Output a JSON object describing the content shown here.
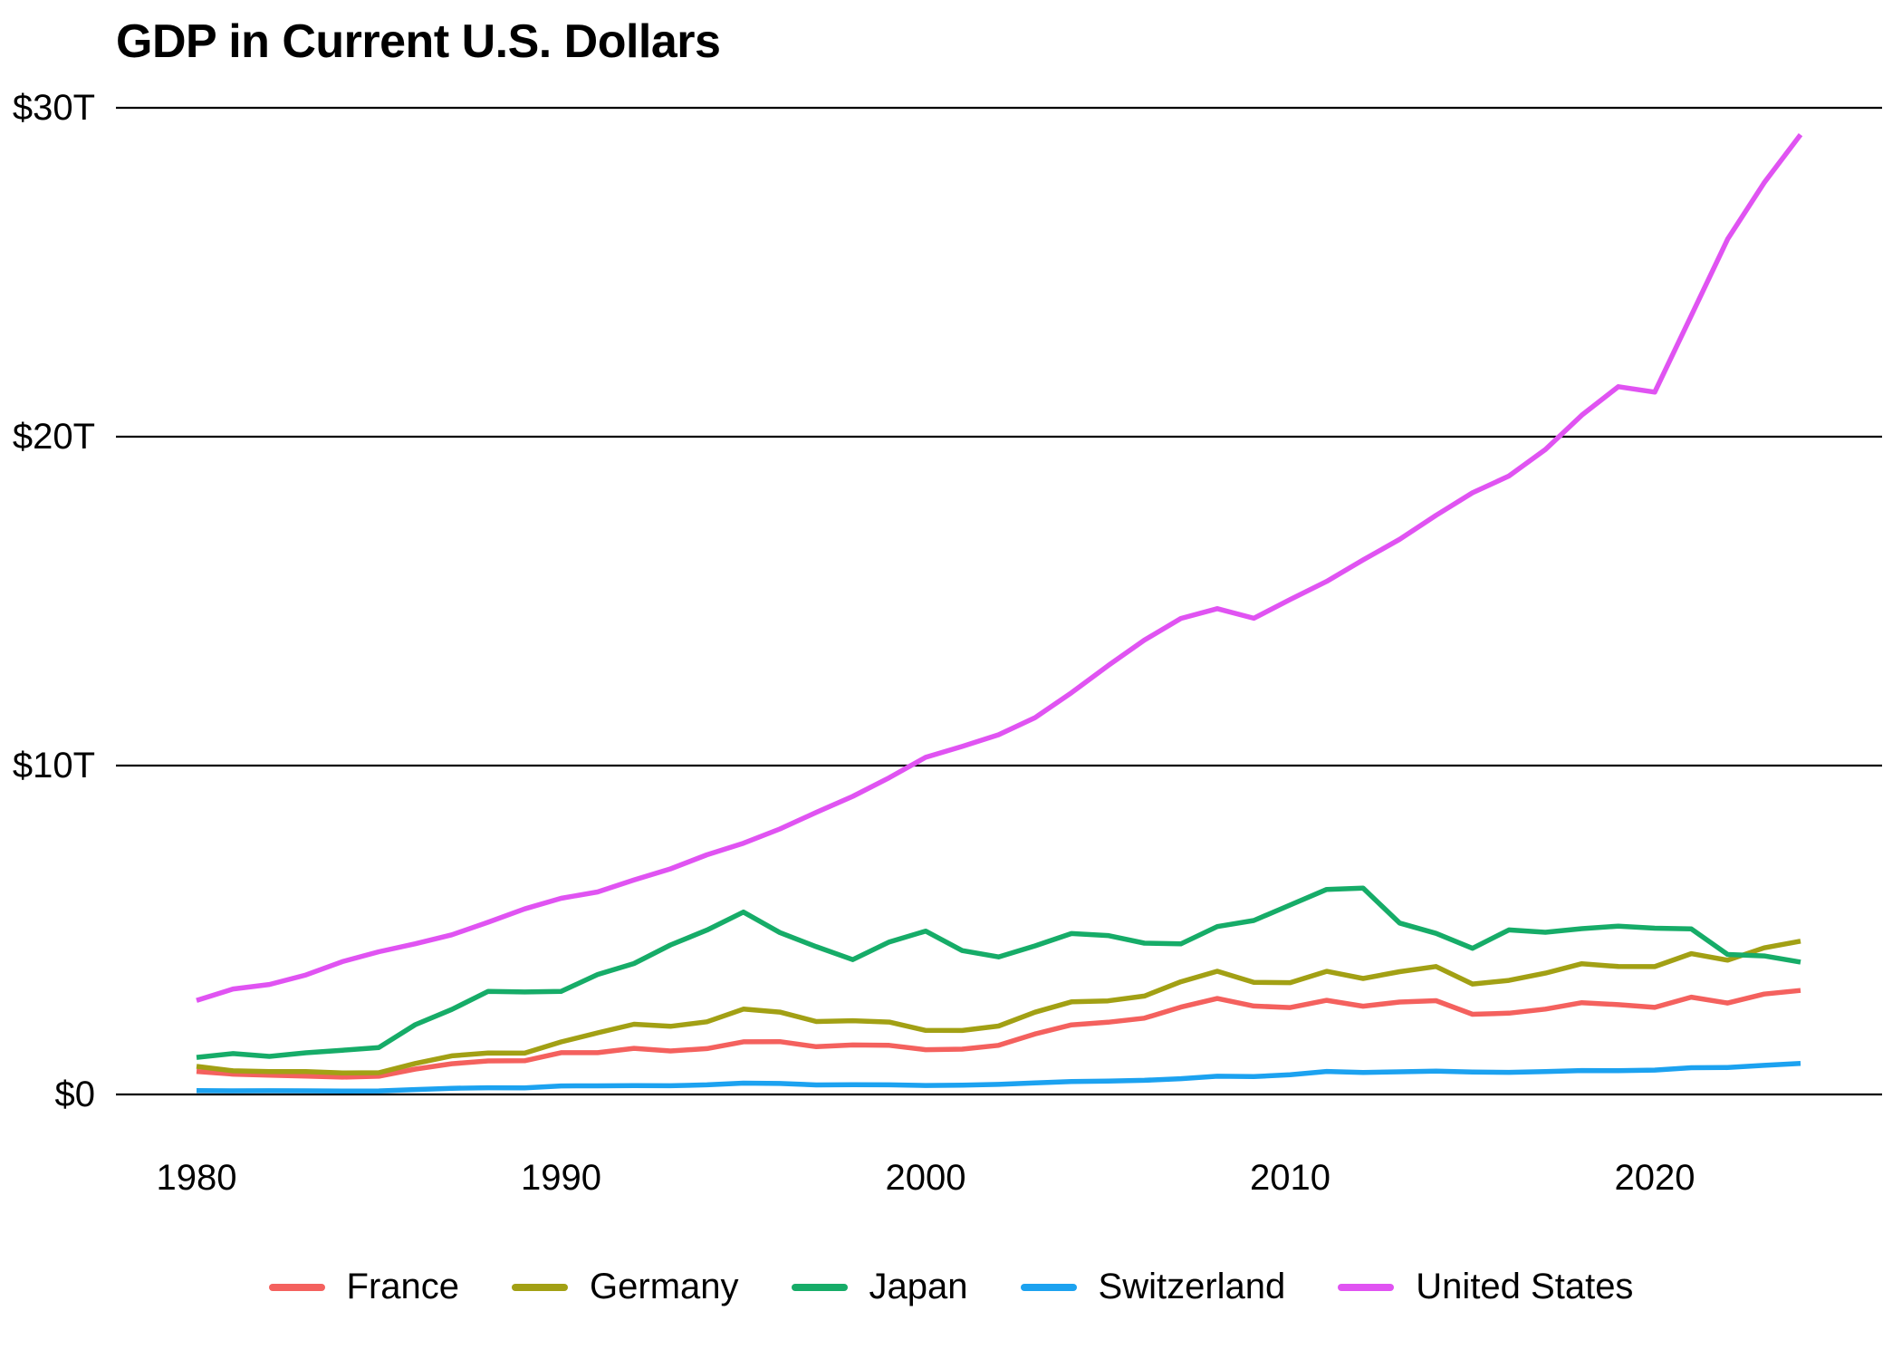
{
  "title": "GDP in Current U.S. Dollars",
  "chart_data": {
    "type": "line",
    "title": "GDP in Current U.S. Dollars",
    "xlabel": "",
    "ylabel": "",
    "grid": "horizontal",
    "legend_position": "bottom",
    "xlim": [
      1980,
      2024
    ],
    "ylim": [
      0,
      30
    ],
    "y_unit": "trillion USD",
    "x": [
      1980,
      1981,
      1982,
      1983,
      1984,
      1985,
      1986,
      1987,
      1988,
      1989,
      1990,
      1991,
      1992,
      1993,
      1994,
      1995,
      1996,
      1997,
      1998,
      1999,
      2000,
      2001,
      2002,
      2003,
      2004,
      2005,
      2006,
      2007,
      2008,
      2009,
      2010,
      2011,
      2012,
      2013,
      2014,
      2015,
      2016,
      2017,
      2018,
      2019,
      2020,
      2021,
      2022,
      2023,
      2024
    ],
    "x_ticks": [
      {
        "value": 1980,
        "label": "1980"
      },
      {
        "value": 1990,
        "label": "1990"
      },
      {
        "value": 2000,
        "label": "2000"
      },
      {
        "value": 2010,
        "label": "2010"
      },
      {
        "value": 2020,
        "label": "2020"
      }
    ],
    "y_ticks": [
      {
        "value": 0,
        "label": "$0"
      },
      {
        "value": 10,
        "label": "$10T"
      },
      {
        "value": 20,
        "label": "$20T"
      },
      {
        "value": 30,
        "label": "$30T"
      }
    ],
    "series": [
      {
        "name": "France",
        "color": "#F4615E",
        "values": [
          0.701,
          0.616,
          0.584,
          0.559,
          0.527,
          0.553,
          0.771,
          0.934,
          1.018,
          1.025,
          1.269,
          1.269,
          1.401,
          1.322,
          1.394,
          1.601,
          1.605,
          1.452,
          1.503,
          1.493,
          1.362,
          1.377,
          1.494,
          1.84,
          2.115,
          2.196,
          2.32,
          2.657,
          2.918,
          2.69,
          2.642,
          2.861,
          2.683,
          2.811,
          2.852,
          2.439,
          2.472,
          2.595,
          2.791,
          2.729,
          2.647,
          2.959,
          2.779,
          3.052,
          3.162
        ]
      },
      {
        "name": "Germany",
        "color": "#A2A014",
        "values": [
          0.854,
          0.719,
          0.698,
          0.694,
          0.653,
          0.661,
          0.943,
          1.173,
          1.263,
          1.257,
          1.599,
          1.874,
          2.134,
          2.071,
          2.21,
          2.594,
          2.503,
          2.218,
          2.243,
          2.2,
          1.948,
          1.946,
          2.079,
          2.501,
          2.815,
          2.846,
          2.993,
          3.426,
          3.746,
          3.411,
          3.4,
          3.744,
          3.527,
          3.733,
          3.889,
          3.358,
          3.469,
          3.69,
          3.975,
          3.889,
          3.887,
          4.281,
          4.082,
          4.456,
          4.66
        ]
      },
      {
        "name": "Japan",
        "color": "#16AC68",
        "values": [
          1.128,
          1.243,
          1.158,
          1.268,
          1.345,
          1.427,
          2.121,
          2.584,
          3.134,
          3.117,
          3.133,
          3.648,
          3.98,
          4.545,
          4.998,
          5.546,
          4.923,
          4.492,
          4.098,
          4.636,
          4.968,
          4.374,
          4.182,
          4.519,
          4.893,
          4.831,
          4.601,
          4.579,
          5.106,
          5.289,
          5.759,
          6.233,
          6.272,
          5.212,
          4.897,
          4.444,
          5.004,
          4.931,
          5.041,
          5.118,
          5.056,
          5.034,
          4.256,
          4.213,
          4.026
        ]
      },
      {
        "name": "Switzerland",
        "color": "#1CA2F0",
        "values": [
          0.118,
          0.11,
          0.112,
          0.111,
          0.106,
          0.108,
          0.149,
          0.188,
          0.203,
          0.198,
          0.258,
          0.261,
          0.27,
          0.265,
          0.293,
          0.343,
          0.332,
          0.29,
          0.298,
          0.292,
          0.272,
          0.282,
          0.307,
          0.353,
          0.395,
          0.408,
          0.43,
          0.48,
          0.554,
          0.542,
          0.598,
          0.7,
          0.668,
          0.689,
          0.71,
          0.68,
          0.672,
          0.695,
          0.726,
          0.721,
          0.742,
          0.813,
          0.818,
          0.885,
          0.942
        ]
      },
      {
        "name": "United States",
        "color": "#E053F2",
        "values": [
          2.857,
          3.207,
          3.344,
          3.634,
          4.038,
          4.339,
          4.58,
          4.855,
          5.236,
          5.642,
          5.963,
          6.158,
          6.52,
          6.859,
          7.287,
          7.64,
          8.073,
          8.578,
          9.063,
          9.631,
          10.251,
          10.582,
          10.936,
          11.458,
          12.214,
          13.037,
          13.815,
          14.474,
          14.77,
          14.478,
          15.049,
          15.6,
          16.254,
          16.88,
          17.608,
          18.295,
          18.804,
          19.612,
          20.657,
          21.521,
          21.354,
          23.681,
          26.007,
          27.721,
          29.185
        ]
      }
    ],
    "axis_color": "#000000"
  }
}
